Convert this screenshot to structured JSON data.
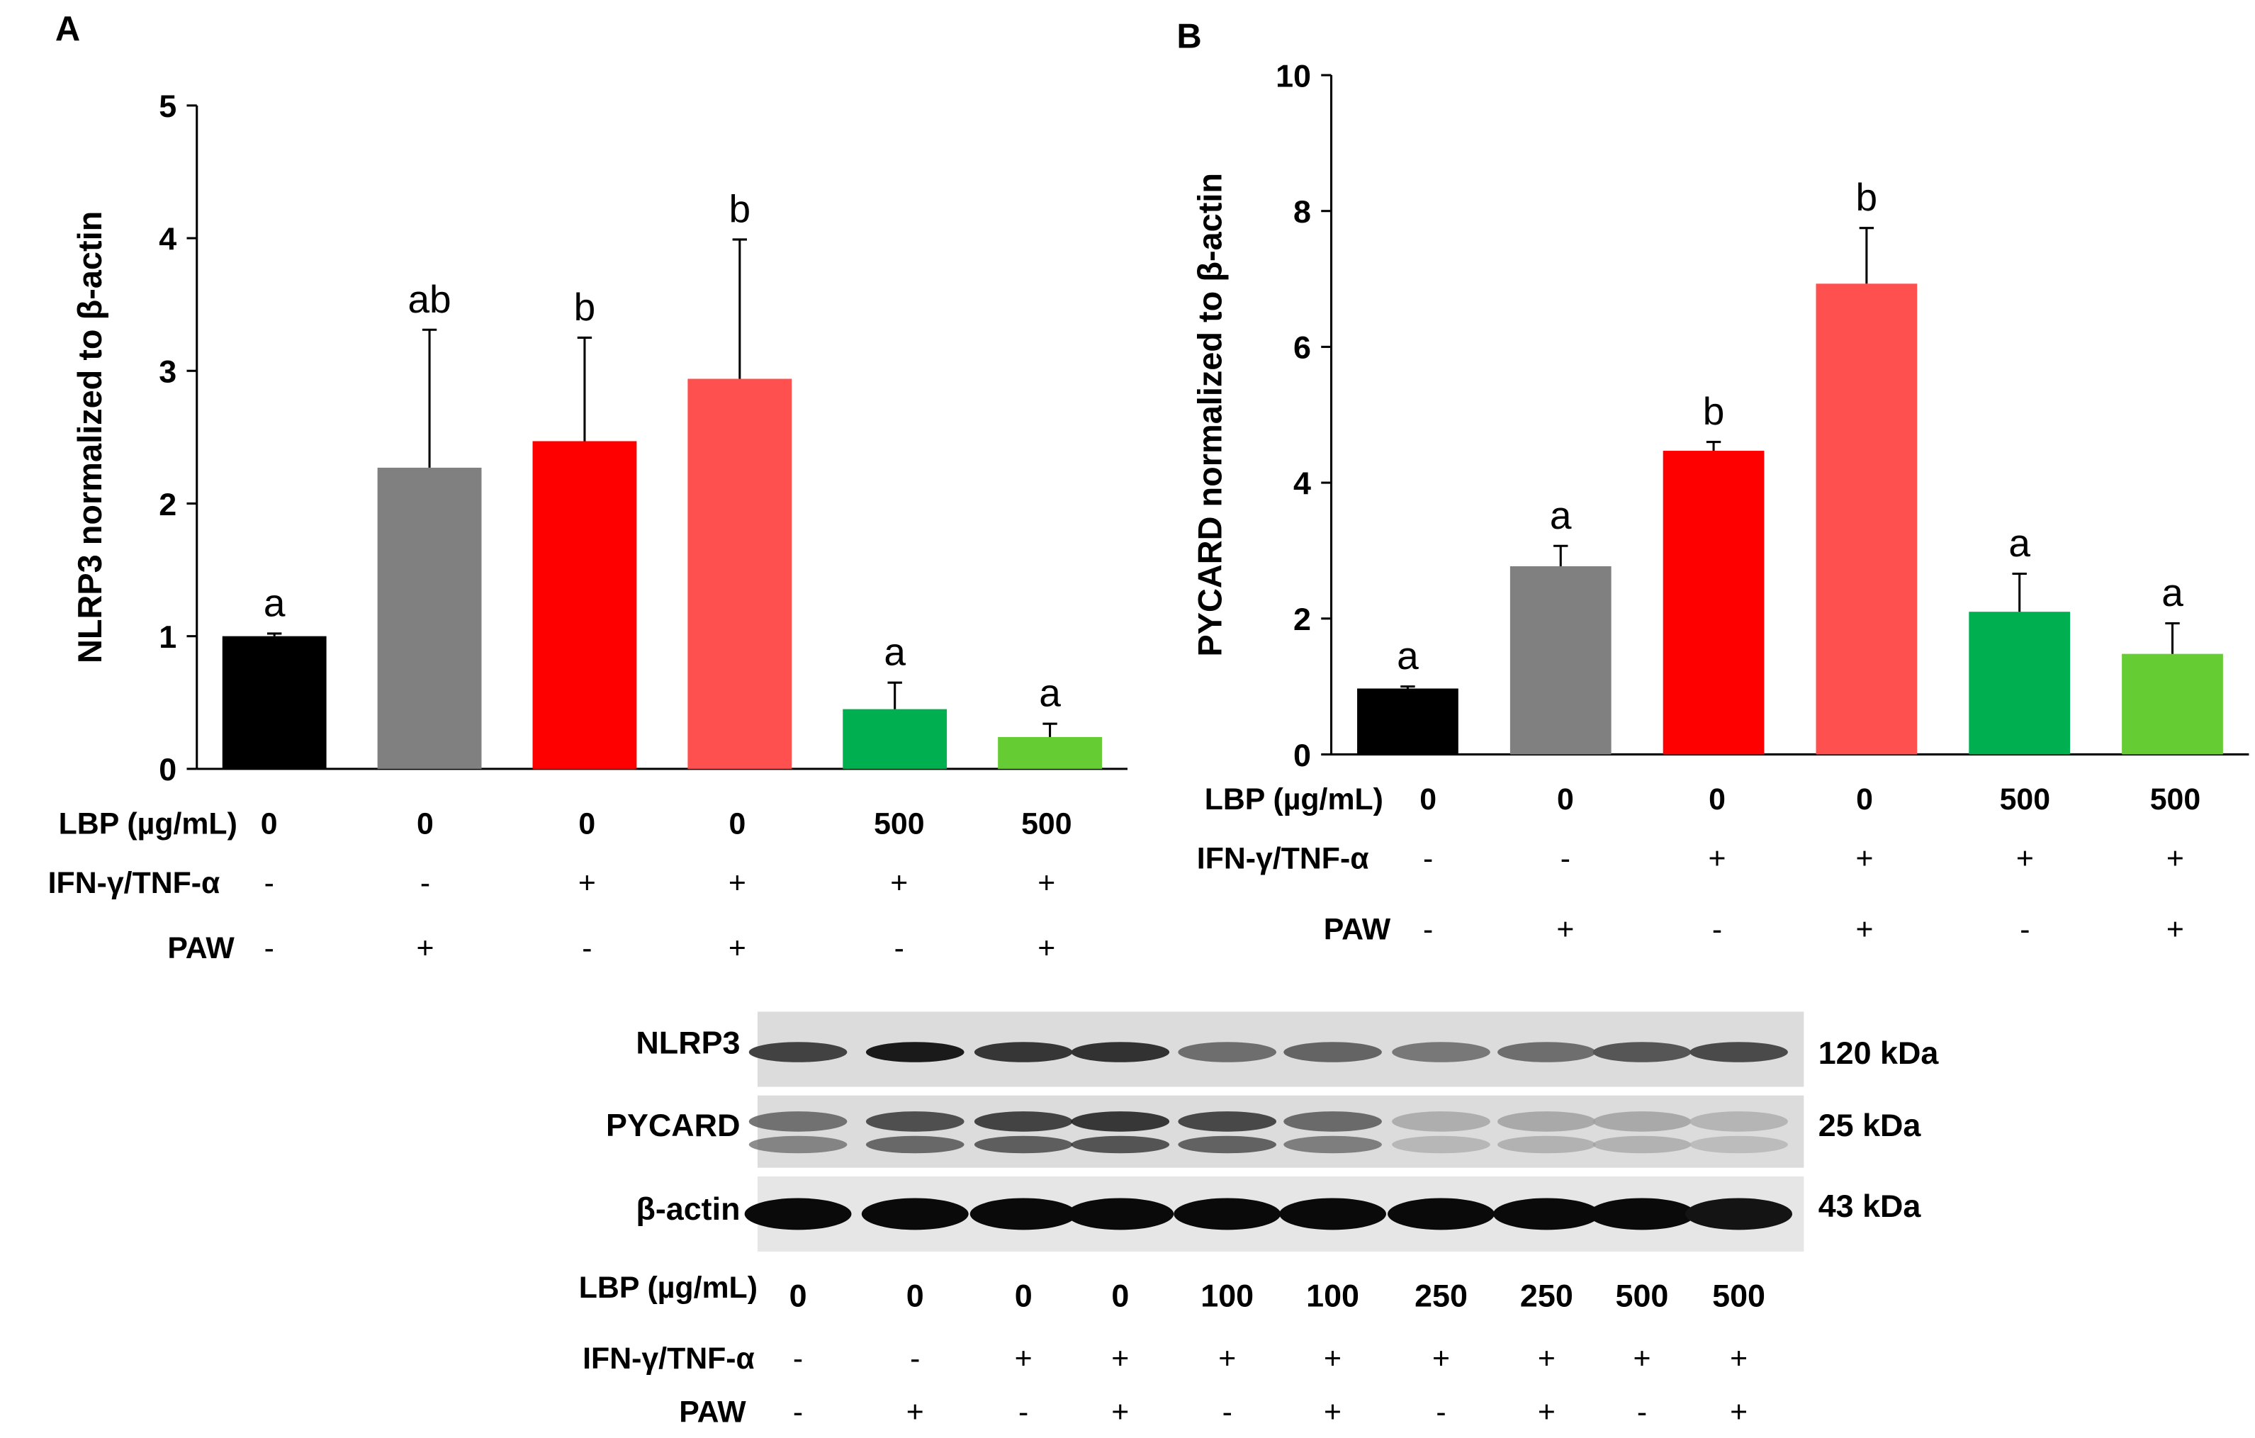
{
  "chart_data": [
    {
      "type": "bar",
      "panel": "A",
      "ylabel": "NLRP3 normalized to β-actin",
      "ylim": [
        0,
        5
      ],
      "yticks": [
        "0",
        "1",
        "2",
        "3",
        "4",
        "5"
      ],
      "series": [
        {
          "name": "NLRP3",
          "values": [
            1.0,
            2.27,
            2.47,
            2.94,
            0.45,
            0.24
          ],
          "errors": [
            0.02,
            1.04,
            0.78,
            1.05,
            0.2,
            0.1
          ],
          "letters": [
            "a",
            "ab",
            "b",
            "b",
            "a",
            "a"
          ],
          "colors": [
            "#000000",
            "#808080",
            "#ff0000",
            "#ff5050",
            "#00b050",
            "#66cc33"
          ]
        }
      ],
      "conditions": {
        "labels": [
          "LBP (µg/mL)",
          "IFN-γ/TNF-α",
          "PAW"
        ],
        "lbp": [
          "0",
          "0",
          "0",
          "0",
          "500",
          "500"
        ],
        "ifn": [
          "-",
          "-",
          "+",
          "+",
          "+",
          "+"
        ],
        "paw": [
          "-",
          "+",
          "-",
          "+",
          "-",
          "+"
        ]
      }
    },
    {
      "type": "bar",
      "panel": "B",
      "ylabel": "PYCARD normalized to β-actin",
      "ylim": [
        0,
        10
      ],
      "yticks": [
        "0",
        "2",
        "4",
        "6",
        "8",
        "10"
      ],
      "series": [
        {
          "name": "PYCARD",
          "values": [
            0.97,
            2.77,
            4.47,
            6.93,
            2.1,
            1.48
          ],
          "errors": [
            0.03,
            0.3,
            0.13,
            0.82,
            0.56,
            0.45
          ],
          "letters": [
            "a",
            "a",
            "b",
            "b",
            "a",
            "a"
          ],
          "colors": [
            "#000000",
            "#808080",
            "#ff0000",
            "#ff5050",
            "#00b050",
            "#66cc33"
          ]
        }
      ],
      "conditions": {
        "labels": [
          "LBP (µg/mL)",
          "IFN-γ/TNF-α",
          "PAW"
        ],
        "lbp": [
          "0",
          "0",
          "0",
          "0",
          "500",
          "500"
        ],
        "ifn": [
          "-",
          "-",
          "+",
          "+",
          "+",
          "+"
        ],
        "paw": [
          "-",
          "+",
          "-",
          "+",
          "-",
          "+"
        ]
      }
    }
  ],
  "blot": {
    "rows": [
      {
        "label": "NLRP3",
        "size": "120 kDa",
        "intensity": [
          0.72,
          0.92,
          0.78,
          0.8,
          0.5,
          0.55,
          0.45,
          0.5,
          0.62,
          0.68
        ]
      },
      {
        "label": "PYCARD",
        "size": "25 kDa",
        "intensity": [
          0.58,
          0.78,
          0.85,
          0.92,
          0.82,
          0.62,
          0.22,
          0.25,
          0.25,
          0.18
        ]
      },
      {
        "label": "β-actin",
        "size": "43 kDa",
        "intensity": [
          1,
          1,
          1,
          1,
          1,
          1,
          1,
          1,
          1,
          0.95
        ]
      }
    ],
    "condition_labels": [
      "LBP (µg/mL)",
      "IFN-γ/TNF-α",
      "PAW"
    ],
    "lbp": [
      "0",
      "0",
      "0",
      "0",
      "100",
      "100",
      "250",
      "250",
      "500",
      "500"
    ],
    "ifn": [
      "-",
      "-",
      "+",
      "+",
      "+",
      "+",
      "+",
      "+",
      "+",
      "+"
    ],
    "paw": [
      "-",
      "+",
      "-",
      "+",
      "-",
      "+",
      "-",
      "+",
      "-",
      "+"
    ]
  }
}
